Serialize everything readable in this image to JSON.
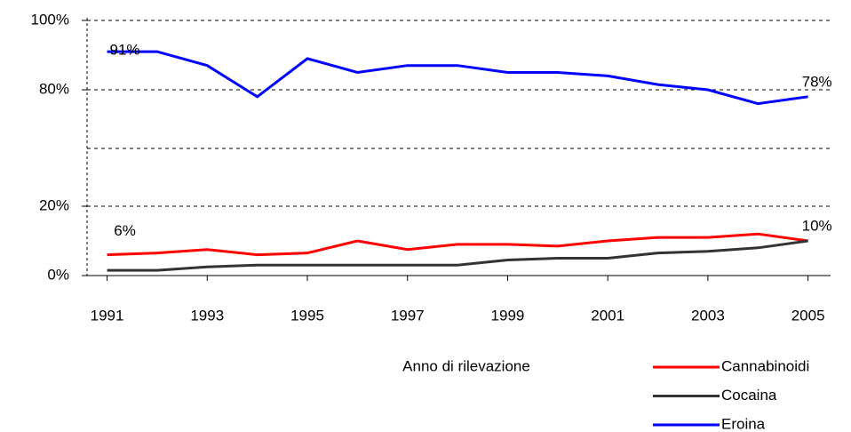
{
  "chart_data": {
    "type": "line",
    "x_label": "Anno di rilevazione",
    "x": [
      1991,
      1992,
      1993,
      1994,
      1995,
      1996,
      1997,
      1998,
      1999,
      2000,
      2001,
      2002,
      2003,
      2004,
      2005
    ],
    "xlim": [
      1990.6,
      2005.45
    ],
    "xticks": [
      1991,
      1993,
      1995,
      1997,
      1999,
      2001,
      2003,
      2005
    ],
    "ylim": [
      0,
      100
    ],
    "axis_break": [
      20,
      80
    ],
    "yticks": [
      {
        "value": 0,
        "label": "0%"
      },
      {
        "value": 20,
        "label": "20%"
      },
      {
        "value": 80,
        "label": "80%"
      },
      {
        "value": 100,
        "label": "100%"
      }
    ],
    "grid": true,
    "legend": "bottom-right",
    "series": [
      {
        "name": "Cannabinoidi",
        "color": "#ff0000",
        "values": [
          6,
          6.5,
          7.5,
          6,
          6.5,
          10,
          7.5,
          9,
          9,
          8.5,
          10,
          11,
          11,
          12,
          10
        ],
        "value_labels": [
          "6%",
          null,
          null,
          null,
          null,
          null,
          null,
          null,
          null,
          null,
          null,
          null,
          null,
          null,
          "10%"
        ]
      },
      {
        "name": "Cocaina",
        "color": "#333333",
        "values": [
          1.5,
          1.5,
          2.5,
          3,
          3,
          3,
          3,
          3,
          4.5,
          5,
          5,
          6.5,
          7,
          8,
          10
        ]
      },
      {
        "name": "Eroina",
        "color": "#0000ff",
        "values": [
          91,
          91,
          87,
          78,
          89,
          85,
          87,
          87,
          85,
          85,
          84,
          81.5,
          80,
          76,
          78
        ],
        "value_labels": [
          "91%",
          null,
          null,
          null,
          null,
          null,
          null,
          null,
          null,
          null,
          null,
          null,
          null,
          null,
          "78%"
        ]
      }
    ]
  }
}
